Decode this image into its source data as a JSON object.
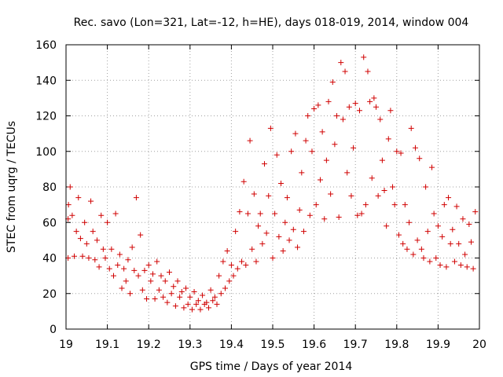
{
  "chart_data": {
    "type": "scatter",
    "title": "Rec. savo (Lon=321, Lat=-12, h=HE), days 018-019, 2014, window 004",
    "xlabel": "GPS time / Days of year 2014",
    "ylabel": "STEC from uqrg / TECUs",
    "xlim": [
      19.0,
      20.0
    ],
    "ylim": [
      0,
      160
    ],
    "x_ticks": [
      19.0,
      19.1,
      19.2,
      19.3,
      19.4,
      19.5,
      19.6,
      19.7,
      19.8,
      19.9,
      20.0
    ],
    "x_tick_labels": [
      "19",
      "19.1",
      "19.2",
      "19.3",
      "19.4",
      "19.5",
      "19.6",
      "19.7",
      "19.8",
      "19.9",
      "20"
    ],
    "y_ticks": [
      0,
      20,
      40,
      60,
      80,
      100,
      120,
      140,
      160
    ],
    "y_tick_labels": [
      "0",
      "20",
      "40",
      "60",
      "80",
      "100",
      "120",
      "140",
      "160"
    ],
    "grid": true,
    "marker": "+",
    "marker_color": "#d00000",
    "series": [
      {
        "points": [
          [
            19.005,
            40
          ],
          [
            19.005,
            62
          ],
          [
            19.006,
            70
          ],
          [
            19.01,
            80
          ],
          [
            19.015,
            64
          ],
          [
            19.02,
            41
          ],
          [
            19.025,
            55
          ],
          [
            19.03,
            74
          ],
          [
            19.035,
            51
          ],
          [
            19.04,
            41
          ],
          [
            19.045,
            60
          ],
          [
            19.05,
            48
          ],
          [
            19.055,
            40
          ],
          [
            19.06,
            72
          ],
          [
            19.065,
            55
          ],
          [
            19.07,
            39
          ],
          [
            19.075,
            50
          ],
          [
            19.08,
            35
          ],
          [
            19.085,
            64
          ],
          [
            19.09,
            45
          ],
          [
            19.095,
            40
          ],
          [
            19.1,
            60
          ],
          [
            19.105,
            34
          ],
          [
            19.11,
            45
          ],
          [
            19.115,
            30
          ],
          [
            19.12,
            65
          ],
          [
            19.125,
            36
          ],
          [
            19.13,
            42
          ],
          [
            19.135,
            23
          ],
          [
            19.14,
            34
          ],
          [
            19.145,
            27
          ],
          [
            19.15,
            39
          ],
          [
            19.155,
            20
          ],
          [
            19.16,
            46
          ],
          [
            19.165,
            33
          ],
          [
            19.17,
            74
          ],
          [
            19.175,
            30
          ],
          [
            19.18,
            53
          ],
          [
            19.185,
            22
          ],
          [
            19.19,
            33
          ],
          [
            19.195,
            17
          ],
          [
            19.2,
            36
          ],
          [
            19.205,
            27
          ],
          [
            19.21,
            31
          ],
          [
            19.215,
            17
          ],
          [
            19.22,
            38
          ],
          [
            19.225,
            22
          ],
          [
            19.23,
            30
          ],
          [
            19.235,
            18
          ],
          [
            19.24,
            27
          ],
          [
            19.245,
            15
          ],
          [
            19.25,
            32
          ],
          [
            19.255,
            20
          ],
          [
            19.26,
            24
          ],
          [
            19.265,
            13
          ],
          [
            19.27,
            27
          ],
          [
            19.275,
            18
          ],
          [
            19.28,
            21
          ],
          [
            19.285,
            12
          ],
          [
            19.29,
            23
          ],
          [
            19.295,
            14
          ],
          [
            19.3,
            18
          ],
          [
            19.305,
            11
          ],
          [
            19.31,
            21
          ],
          [
            19.315,
            14
          ],
          [
            19.32,
            16
          ],
          [
            19.325,
            11
          ],
          [
            19.33,
            19
          ],
          [
            19.335,
            14
          ],
          [
            19.34,
            15
          ],
          [
            19.345,
            12
          ],
          [
            19.35,
            22
          ],
          [
            19.355,
            16
          ],
          [
            19.36,
            18
          ],
          [
            19.365,
            14
          ],
          [
            19.37,
            30
          ],
          [
            19.375,
            20
          ],
          [
            19.38,
            38
          ],
          [
            19.385,
            23
          ],
          [
            19.39,
            44
          ],
          [
            19.395,
            27
          ],
          [
            19.4,
            36
          ],
          [
            19.405,
            30
          ],
          [
            19.41,
            55
          ],
          [
            19.415,
            34
          ],
          [
            19.42,
            66
          ],
          [
            19.425,
            38
          ],
          [
            19.43,
            83
          ],
          [
            19.435,
            36
          ],
          [
            19.44,
            65
          ],
          [
            19.445,
            106
          ],
          [
            19.45,
            45
          ],
          [
            19.455,
            76
          ],
          [
            19.46,
            38
          ],
          [
            19.465,
            58
          ],
          [
            19.47,
            65
          ],
          [
            19.475,
            48
          ],
          [
            19.48,
            93
          ],
          [
            19.485,
            54
          ],
          [
            19.49,
            75
          ],
          [
            19.495,
            113
          ],
          [
            19.5,
            40
          ],
          [
            19.505,
            65
          ],
          [
            19.51,
            98
          ],
          [
            19.515,
            52
          ],
          [
            19.52,
            82
          ],
          [
            19.525,
            44
          ],
          [
            19.53,
            60
          ],
          [
            19.535,
            74
          ],
          [
            19.54,
            50
          ],
          [
            19.545,
            100
          ],
          [
            19.55,
            56
          ],
          [
            19.555,
            110
          ],
          [
            19.56,
            46
          ],
          [
            19.565,
            67
          ],
          [
            19.57,
            88
          ],
          [
            19.575,
            55
          ],
          [
            19.58,
            106
          ],
          [
            19.585,
            120
          ],
          [
            19.59,
            64
          ],
          [
            19.595,
            100
          ],
          [
            19.6,
            124
          ],
          [
            19.605,
            70
          ],
          [
            19.61,
            126
          ],
          [
            19.615,
            84
          ],
          [
            19.62,
            111
          ],
          [
            19.625,
            62
          ],
          [
            19.63,
            95
          ],
          [
            19.635,
            128
          ],
          [
            19.64,
            76
          ],
          [
            19.645,
            139
          ],
          [
            19.65,
            104
          ],
          [
            19.655,
            120
          ],
          [
            19.66,
            63
          ],
          [
            19.665,
            150
          ],
          [
            19.67,
            118
          ],
          [
            19.675,
            145
          ],
          [
            19.68,
            88
          ],
          [
            19.685,
            125
          ],
          [
            19.69,
            75
          ],
          [
            19.695,
            102
          ],
          [
            19.7,
            127
          ],
          [
            19.705,
            64
          ],
          [
            19.71,
            123
          ],
          [
            19.715,
            65
          ],
          [
            19.72,
            153
          ],
          [
            19.725,
            70
          ],
          [
            19.73,
            145
          ],
          [
            19.735,
            128
          ],
          [
            19.74,
            85
          ],
          [
            19.745,
            130
          ],
          [
            19.75,
            125
          ],
          [
            19.755,
            75
          ],
          [
            19.76,
            118
          ],
          [
            19.765,
            95
          ],
          [
            19.77,
            78
          ],
          [
            19.775,
            58
          ],
          [
            19.78,
            107
          ],
          [
            19.785,
            123
          ],
          [
            19.79,
            80
          ],
          [
            19.795,
            70
          ],
          [
            19.8,
            100
          ],
          [
            19.805,
            53
          ],
          [
            19.81,
            99
          ],
          [
            19.815,
            48
          ],
          [
            19.82,
            70
          ],
          [
            19.825,
            45
          ],
          [
            19.83,
            60
          ],
          [
            19.835,
            113
          ],
          [
            19.84,
            42
          ],
          [
            19.845,
            102
          ],
          [
            19.85,
            50
          ],
          [
            19.855,
            96
          ],
          [
            19.86,
            45
          ],
          [
            19.865,
            40
          ],
          [
            19.87,
            80
          ],
          [
            19.875,
            55
          ],
          [
            19.88,
            38
          ],
          [
            19.885,
            91
          ],
          [
            19.89,
            65
          ],
          [
            19.895,
            40
          ],
          [
            19.9,
            58
          ],
          [
            19.905,
            36
          ],
          [
            19.91,
            52
          ],
          [
            19.915,
            70
          ],
          [
            19.92,
            35
          ],
          [
            19.925,
            74
          ],
          [
            19.93,
            48
          ],
          [
            19.935,
            56
          ],
          [
            19.94,
            38
          ],
          [
            19.945,
            69
          ],
          [
            19.95,
            48
          ],
          [
            19.955,
            36
          ],
          [
            19.96,
            62
          ],
          [
            19.965,
            42
          ],
          [
            19.97,
            35
          ],
          [
            19.975,
            59
          ],
          [
            19.98,
            49
          ],
          [
            19.985,
            34
          ],
          [
            19.99,
            66
          ]
        ]
      }
    ]
  }
}
